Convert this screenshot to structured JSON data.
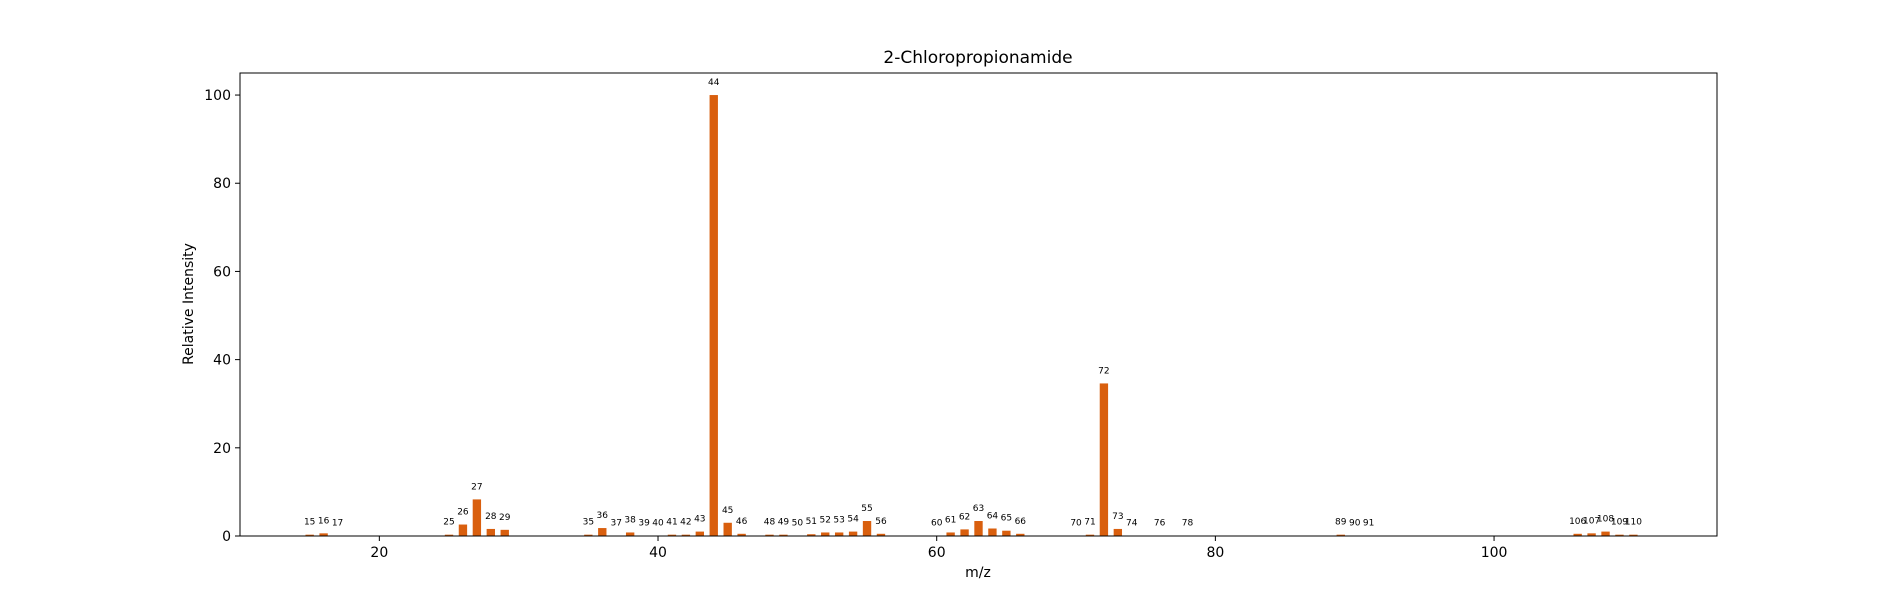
{
  "chart_data": {
    "type": "bar",
    "title": "2-Chloropropionamide",
    "xlabel": "m/z",
    "ylabel": "Relative Intensity",
    "xlim": [
      10,
      116
    ],
    "ylim": [
      0,
      105
    ],
    "xticks": [
      20,
      40,
      60,
      80,
      100
    ],
    "yticks": [
      0,
      20,
      40,
      60,
      80,
      100
    ],
    "grid": false,
    "bar_color": "#d95f0e",
    "x": [
      15,
      16,
      17,
      25,
      26,
      27,
      28,
      29,
      35,
      36,
      37,
      38,
      39,
      40,
      41,
      42,
      43,
      44,
      45,
      46,
      48,
      49,
      50,
      51,
      52,
      53,
      54,
      55,
      56,
      60,
      61,
      62,
      63,
      64,
      65,
      66,
      70,
      71,
      72,
      73,
      74,
      76,
      78,
      89,
      90,
      91,
      106,
      107,
      108,
      109,
      110
    ],
    "values": [
      0.3,
      0.6,
      0.1,
      0.3,
      2.6,
      8.3,
      1.6,
      1.4,
      0.3,
      1.8,
      0.1,
      0.8,
      0.1,
      0.1,
      0.3,
      0.3,
      1.0,
      100,
      3.0,
      0.5,
      0.3,
      0.3,
      0.1,
      0.4,
      0.8,
      0.8,
      1.0,
      3.4,
      0.5,
      0.1,
      0.8,
      1.5,
      3.4,
      1.7,
      1.2,
      0.5,
      0.1,
      0.3,
      34.6,
      1.6,
      0.1,
      0.1,
      0.1,
      0.3,
      0.1,
      0.1,
      0.5,
      0.6,
      1.0,
      0.3,
      0.3
    ]
  }
}
